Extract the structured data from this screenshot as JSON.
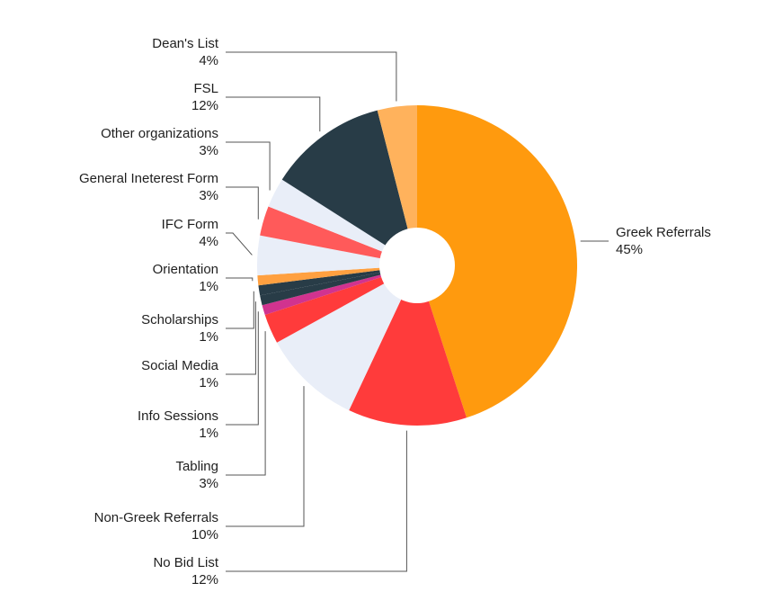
{
  "chart_data": {
    "type": "pie",
    "title": "",
    "categories": [
      "Greek Referrals",
      "No Bid List",
      "Non-Greek Referrals",
      "Tabling",
      "Info Sessions",
      "Social Media",
      "Scholarships",
      "Orientation",
      "IFC Form",
      "General Ineterest Form",
      "Other organizations",
      "FSL",
      "Dean's List"
    ],
    "values": [
      45,
      12,
      10,
      3,
      1,
      1,
      1,
      1,
      4,
      3,
      3,
      12,
      4
    ],
    "labels": [
      "45%",
      "12%",
      "10%",
      "3%",
      "1%",
      "1%",
      "1%",
      "1%",
      "4%",
      "3%",
      "3%",
      "12%",
      "4%"
    ],
    "colors": [
      "#FF9A0E",
      "#FF3B3B",
      "#E9EEF8",
      "#FF3B3B",
      "#D1338F",
      "#283C47",
      "#283C47",
      "#FFA040",
      "#E9EEF8",
      "#FF5A5A",
      "#E9EEF8",
      "#283C47",
      "#FFB25C"
    ],
    "hole": true
  }
}
